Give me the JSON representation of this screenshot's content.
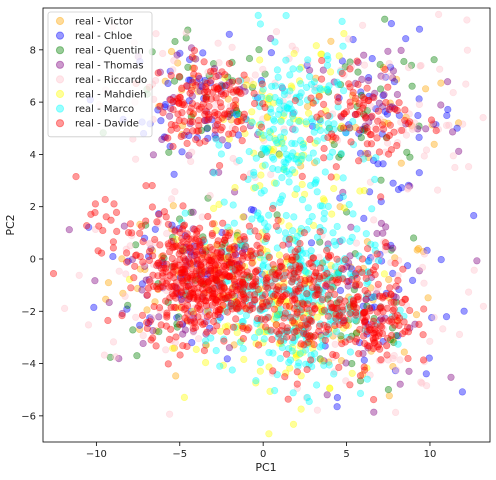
{
  "chart_data": {
    "type": "scatter",
    "xlabel": "PC1",
    "ylabel": "PC2",
    "xlim": [
      -13.2,
      13.6
    ],
    "ylim": [
      -7.0,
      9.6
    ],
    "xticks": [
      -10,
      -5,
      0,
      5,
      10
    ],
    "yticks": [
      -6,
      -4,
      -2,
      0,
      2,
      4,
      6,
      8
    ],
    "grid": false,
    "legend_position": "top-left",
    "marker_alpha": 0.4,
    "series": [
      {
        "name": "real - Victor",
        "color": "#ffa500",
        "clusters": [
          {
            "cx": -4.5,
            "cy": -0.8,
            "sx": 2.4,
            "sy": 1.4,
            "n": 40
          },
          {
            "cx": 6.0,
            "cy": -2.0,
            "sx": 2.2,
            "sy": 1.6,
            "n": 35
          },
          {
            "cx": -4.0,
            "cy": 6.0,
            "sx": 2.0,
            "sy": 1.0,
            "n": 20
          },
          {
            "cx": 7.0,
            "cy": 5.5,
            "sx": 2.5,
            "sy": 1.3,
            "n": 25
          }
        ]
      },
      {
        "name": "real - Chloe",
        "color": "#0000ff",
        "clusters": [
          {
            "cx": -4.5,
            "cy": -0.5,
            "sx": 2.6,
            "sy": 1.6,
            "n": 60
          },
          {
            "cx": 6.5,
            "cy": -1.5,
            "sx": 2.0,
            "sy": 1.8,
            "n": 45
          },
          {
            "cx": -4.0,
            "cy": 5.8,
            "sx": 2.2,
            "sy": 1.2,
            "n": 45
          },
          {
            "cx": 7.0,
            "cy": 5.5,
            "sx": 2.5,
            "sy": 1.5,
            "n": 45
          }
        ]
      },
      {
        "name": "real - Quentin",
        "color": "#008000",
        "clusters": [
          {
            "cx": -4.0,
            "cy": -0.8,
            "sx": 2.6,
            "sy": 1.6,
            "n": 40
          },
          {
            "cx": 5.5,
            "cy": -2.0,
            "sx": 2.2,
            "sy": 1.8,
            "n": 35
          },
          {
            "cx": -3.5,
            "cy": 6.0,
            "sx": 2.3,
            "sy": 1.3,
            "n": 30
          },
          {
            "cx": 6.5,
            "cy": 5.5,
            "sx": 2.5,
            "sy": 1.5,
            "n": 30
          }
        ]
      },
      {
        "name": "real - Thomas",
        "color": "#800080",
        "clusters": [
          {
            "cx": -4.5,
            "cy": -0.5,
            "sx": 2.5,
            "sy": 1.6,
            "n": 50
          },
          {
            "cx": 6.5,
            "cy": -1.5,
            "sx": 2.0,
            "sy": 1.8,
            "n": 40
          },
          {
            "cx": -4.0,
            "cy": 6.0,
            "sx": 2.2,
            "sy": 1.2,
            "n": 40
          },
          {
            "cx": 7.0,
            "cy": 5.5,
            "sx": 2.5,
            "sy": 1.5,
            "n": 40
          }
        ]
      },
      {
        "name": "real - Riccardo",
        "color": "#ffc0cb",
        "clusters": [
          {
            "cx": -5.0,
            "cy": -0.8,
            "sx": 3.2,
            "sy": 1.8,
            "n": 80
          },
          {
            "cx": 7.0,
            "cy": -2.0,
            "sx": 2.6,
            "sy": 2.0,
            "n": 60
          },
          {
            "cx": -4.0,
            "cy": 6.0,
            "sx": 3.0,
            "sy": 1.5,
            "n": 60
          },
          {
            "cx": 8.0,
            "cy": 5.5,
            "sx": 3.0,
            "sy": 1.8,
            "n": 60
          }
        ]
      },
      {
        "name": "real - Mahdieh",
        "color": "#ffff00",
        "clusters": [
          {
            "cx": 1.5,
            "cy": 4.5,
            "sx": 2.0,
            "sy": 2.0,
            "n": 90
          },
          {
            "cx": 1.5,
            "cy": -2.5,
            "sx": 2.2,
            "sy": 1.6,
            "n": 100
          },
          {
            "cx": -2.0,
            "cy": -1.0,
            "sx": 1.6,
            "sy": 1.4,
            "n": 40
          }
        ]
      },
      {
        "name": "real - Marco",
        "color": "#00ffff",
        "clusters": [
          {
            "cx": 1.8,
            "cy": 4.5,
            "sx": 1.8,
            "sy": 2.0,
            "n": 200
          },
          {
            "cx": 2.5,
            "cy": -1.5,
            "sx": 2.0,
            "sy": 1.7,
            "n": 260
          },
          {
            "cx": -1.0,
            "cy": -1.0,
            "sx": 1.5,
            "sy": 1.5,
            "n": 60
          }
        ]
      },
      {
        "name": "real - Davide",
        "color": "#ff0000",
        "clusters": [
          {
            "cx": -4.0,
            "cy": -0.7,
            "sx": 1.6,
            "sy": 1.1,
            "n": 360
          },
          {
            "cx": -1.5,
            "cy": -0.8,
            "sx": 1.3,
            "sy": 1.0,
            "n": 120
          },
          {
            "cx": 1.8,
            "cy": -1.5,
            "sx": 1.5,
            "sy": 1.3,
            "n": 200
          },
          {
            "cx": 6.5,
            "cy": -2.0,
            "sx": 1.3,
            "sy": 1.1,
            "n": 160
          },
          {
            "cx": -3.5,
            "cy": 6.0,
            "sx": 1.4,
            "sy": 0.8,
            "n": 140
          },
          {
            "cx": 6.0,
            "cy": 5.5,
            "sx": 1.7,
            "sy": 1.0,
            "n": 90
          },
          {
            "cx": -8.0,
            "cy": 0.5,
            "sx": 1.6,
            "sy": 1.2,
            "n": 40
          }
        ]
      }
    ]
  }
}
